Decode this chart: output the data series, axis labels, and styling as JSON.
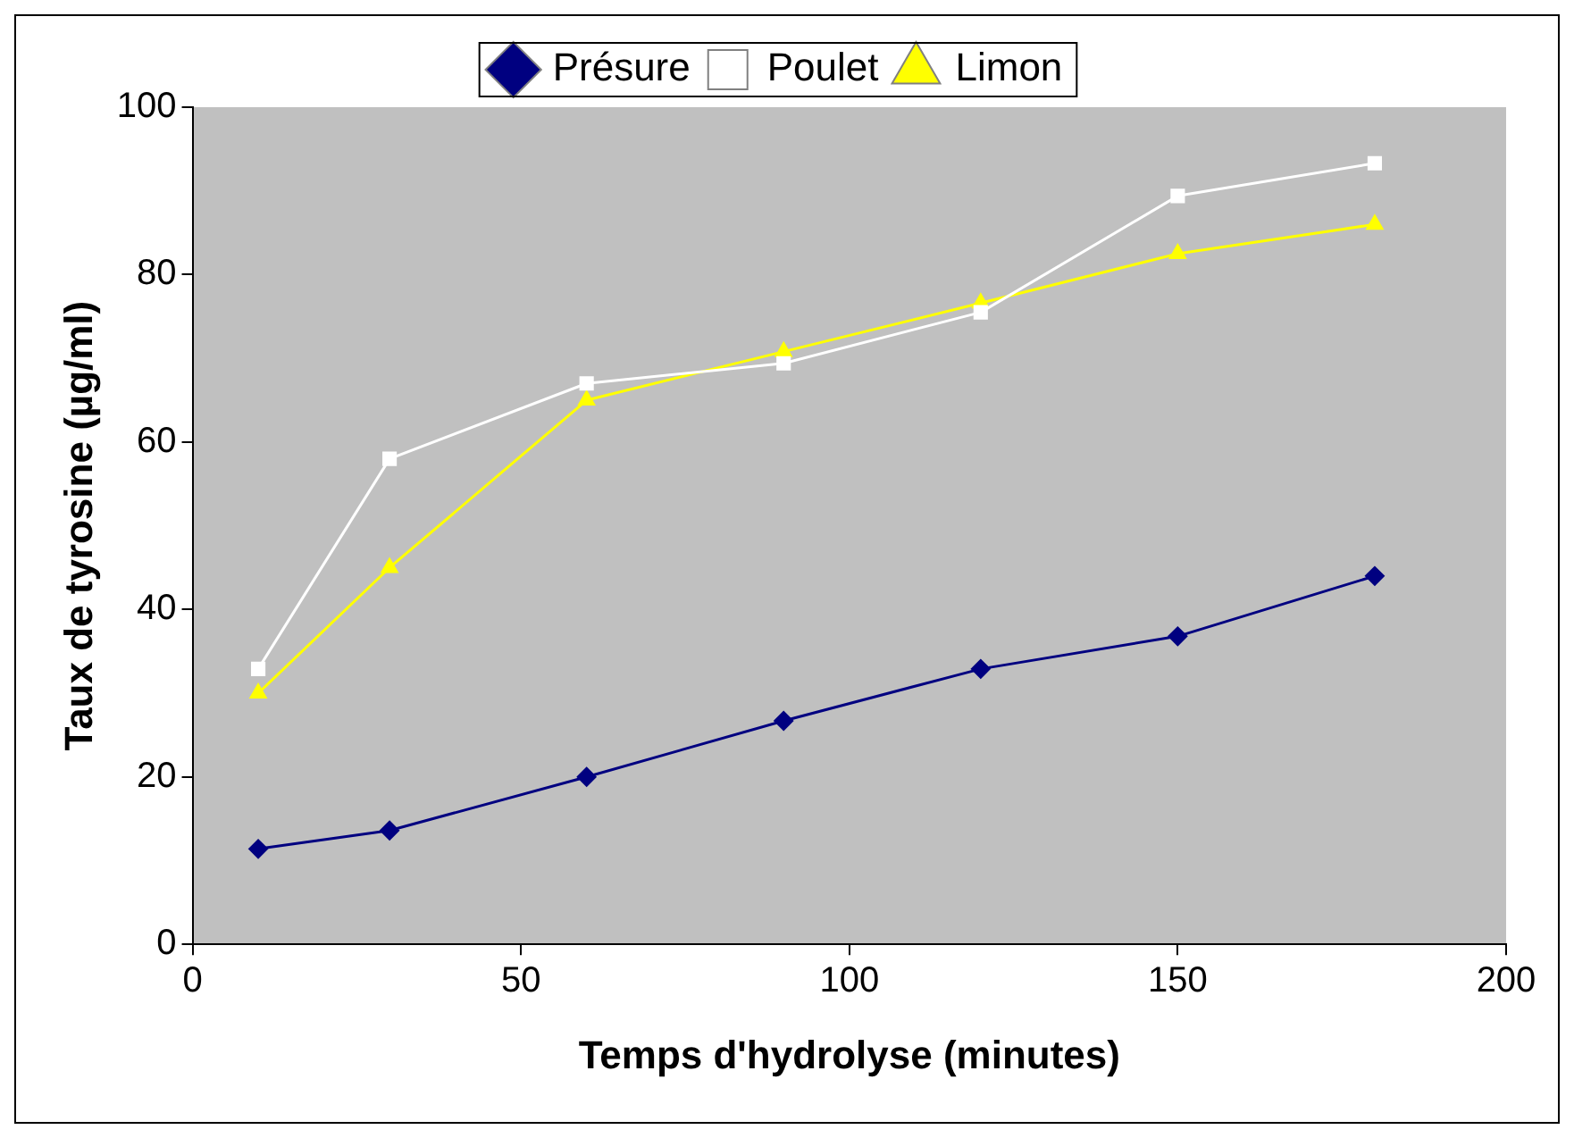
{
  "chart_data": {
    "type": "line",
    "xlabel": "Temps d'hydrolyse (minutes)",
    "ylabel": "Taux de tyrosine (µg/ml)",
    "x": [
      10,
      30,
      60,
      90,
      120,
      150,
      180
    ],
    "series": [
      {
        "name": "Présure",
        "color": "#000080",
        "marker": "diamond",
        "values": [
          11.4,
          13.6,
          20,
          26.7,
          32.9,
          36.8,
          44
        ]
      },
      {
        "name": "Poulet",
        "color": "#ffffff",
        "marker": "square",
        "values": [
          32.9,
          58,
          67,
          69.4,
          75.5,
          89.4,
          93.3
        ]
      },
      {
        "name": "Limon",
        "color": "#ffff00",
        "marker": "triangle",
        "values": [
          30,
          45,
          65,
          70.8,
          76.6,
          82.5,
          86
        ]
      }
    ],
    "xlim": [
      0,
      200
    ],
    "xticks": [
      0,
      50,
      100,
      150,
      200
    ],
    "ylim": [
      0,
      100
    ],
    "yticks": [
      0,
      20,
      40,
      60,
      80,
      100
    ],
    "grid": false,
    "legend": "top",
    "line_style": "solid"
  }
}
